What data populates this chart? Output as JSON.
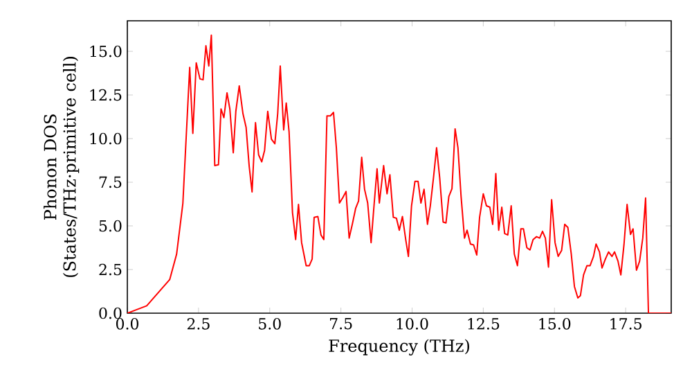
{
  "chart_data": {
    "type": "line",
    "xlabel": "Frequency (THz)",
    "ylabel": "Phonon DOS (States/THz·primitive cell)",
    "xlim": [
      0,
      19.1
    ],
    "ylim": [
      0,
      16.75
    ],
    "xticks": [
      {
        "value": 0,
        "label": "0.0"
      },
      {
        "value": 2.5,
        "label": "2.5"
      },
      {
        "value": 5,
        "label": "5.0"
      },
      {
        "value": 7.5,
        "label": "7.5"
      },
      {
        "value": 10,
        "label": "10.0"
      },
      {
        "value": 12.5,
        "label": "12.5"
      },
      {
        "value": 15,
        "label": "15.0"
      },
      {
        "value": 17.5,
        "label": "17.5"
      }
    ],
    "yticks": [
      {
        "value": 0,
        "label": "0.0"
      },
      {
        "value": 2.5,
        "label": "2.5"
      },
      {
        "value": 5,
        "label": "5.0"
      },
      {
        "value": 7.5,
        "label": "7.5"
      },
      {
        "value": 10,
        "label": "10.0"
      },
      {
        "value": 12.5,
        "label": "12.5"
      },
      {
        "value": 15,
        "label": "15.0"
      }
    ],
    "series": [
      {
        "color": "#ff0000",
        "x": [
          0,
          0.68,
          1.49,
          1.73,
          1.95,
          2.19,
          2.3,
          2.42,
          2.55,
          2.66,
          2.76,
          2.86,
          2.95,
          3.07,
          3.2,
          3.29,
          3.39,
          3.5,
          3.6,
          3.72,
          3.81,
          3.93,
          4.06,
          4.17,
          4.28,
          4.38,
          4.5,
          4.61,
          4.72,
          4.82,
          4.93,
          5.06,
          5.18,
          5.28,
          5.37,
          5.49,
          5.58,
          5.68,
          5.8,
          5.91,
          6.01,
          6.12,
          6.28,
          6.39,
          6.49,
          6.56,
          6.69,
          6.8,
          6.9,
          7.01,
          7.13,
          7.24,
          7.34,
          7.45,
          7.57,
          7.68,
          7.79,
          7.9,
          8.02,
          8.12,
          8.23,
          8.33,
          8.44,
          8.56,
          8.67,
          8.77,
          8.85,
          9.0,
          9.12,
          9.22,
          9.34,
          9.45,
          9.55,
          9.66,
          9.78,
          9.87,
          9.98,
          10.1,
          10.21,
          10.31,
          10.42,
          10.54,
          10.64,
          10.75,
          10.86,
          10.97,
          11.09,
          11.19,
          11.29,
          11.4,
          11.51,
          11.61,
          11.72,
          11.84,
          11.93,
          12.05,
          12.16,
          12.27,
          12.37,
          12.5,
          12.61,
          12.73,
          12.83,
          12.94,
          13.04,
          13.15,
          13.25,
          13.36,
          13.48,
          13.59,
          13.7,
          13.82,
          13.91,
          14.03,
          14.14,
          14.25,
          14.37,
          14.48,
          14.58,
          14.68,
          14.79,
          14.9,
          15.02,
          15.13,
          15.25,
          15.36,
          15.47,
          15.59,
          15.7,
          15.82,
          15.91,
          16.02,
          16.14,
          16.25,
          16.37,
          16.46,
          16.58,
          16.67,
          16.79,
          16.9,
          17.02,
          17.11,
          17.23,
          17.33,
          17.44,
          17.55,
          17.67,
          17.76,
          17.88,
          17.99,
          18.1,
          18.2,
          18.3,
          19.1
        ],
        "values": [
          0,
          0.42,
          1.93,
          3.38,
          6.29,
          14.08,
          10.3,
          14.34,
          13.42,
          13.37,
          15.32,
          14.16,
          15.93,
          8.45,
          8.5,
          11.7,
          11.2,
          12.62,
          11.7,
          9.19,
          11.56,
          13.02,
          11.43,
          10.65,
          8.4,
          6.95,
          10.91,
          9.07,
          8.67,
          9.33,
          11.56,
          9.97,
          9.71,
          11.43,
          14.16,
          10.5,
          12.04,
          10.38,
          5.76,
          4.22,
          6.23,
          4.04,
          2.72,
          2.72,
          3.1,
          5.49,
          5.54,
          4.48,
          4.22,
          11.3,
          11.3,
          11.5,
          9.48,
          6.31,
          6.63,
          6.97,
          4.3,
          5.09,
          6.02,
          6.42,
          8.93,
          7.1,
          6.31,
          4.04,
          6.31,
          8.27,
          6.31,
          8.45,
          6.84,
          7.93,
          5.49,
          5.44,
          4.75,
          5.54,
          4.17,
          3.25,
          6.15,
          7.55,
          7.55,
          6.31,
          7.1,
          5.09,
          6.15,
          7.74,
          9.48,
          7.74,
          5.22,
          5.17,
          6.68,
          7.13,
          10.56,
          9.48,
          6.68,
          4.3,
          4.75,
          3.96,
          3.91,
          3.33,
          5.49,
          6.84,
          6.15,
          6.07,
          5.09,
          8.0,
          4.75,
          6.07,
          4.56,
          4.48,
          6.15,
          3.38,
          2.72,
          4.83,
          4.83,
          3.75,
          3.62,
          4.22,
          4.38,
          4.3,
          4.69,
          4.3,
          2.64,
          6.5,
          4.04,
          3.25,
          3.59,
          5.09,
          4.91,
          3.38,
          1.53,
          0.87,
          1.0,
          2.19,
          2.72,
          2.72,
          3.25,
          3.96,
          3.51,
          2.59,
          3.11,
          3.51,
          3.25,
          3.51,
          2.98,
          2.19,
          3.91,
          6.23,
          4.51,
          4.83,
          2.46,
          2.98,
          4.3,
          6.6,
          0,
          0
        ]
      }
    ]
  }
}
